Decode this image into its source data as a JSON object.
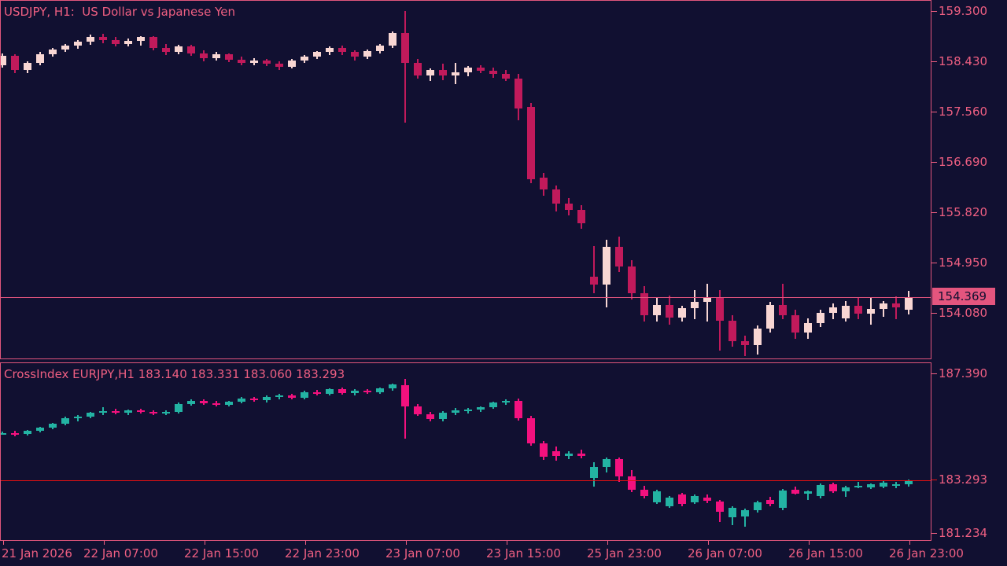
{
  "top_panel": {
    "title": "USDJPY, H1:  US Dollar vs Japanese Yen",
    "symbol": "USDJPY",
    "timeframe": "H1",
    "description": "US Dollar vs Japanese Yen",
    "price_axis": {
      "labels": [
        "159.300",
        "158.430",
        "157.560",
        "156.690",
        "155.820",
        "154.950",
        "154.080"
      ],
      "bid_badge": "154.369"
    }
  },
  "lower_panel": {
    "title": "CrossIndex EURJPY,H1 183.140 183.331 183.060 183.293",
    "indicator_name": "CrossIndex",
    "symbol": "EURJPY",
    "timeframe": "H1",
    "displayed_values": [
      "183.140",
      "183.331",
      "183.060",
      "183.293"
    ],
    "price_axis": {
      "labels": [
        "187.390",
        "183.293",
        "181.234"
      ]
    }
  },
  "time_axis": {
    "labels": [
      "21 Jan 2026",
      "22 Jan 07:00",
      "22 Jan 15:00",
      "22 Jan 23:00",
      "23 Jan 07:00",
      "23 Jan 15:00",
      "25 Jan 23:00",
      "26 Jan 07:00",
      "26 Jan 15:00",
      "26 Jan 23:00"
    ]
  },
  "colors": {
    "background": "#111031",
    "accent_text": "#ef5f82",
    "panel_border": "#e0557c",
    "bull_candle_main": "#f8d6d3",
    "bear_candle_main": "#c11a5b",
    "bull_candle_indicator": "#23b3a3",
    "bear_candle_indicator": "#f3117e",
    "bid_line": "#e4557e",
    "level_line": "#e81010",
    "badge_bg": "#e4557e",
    "badge_text": "#111031"
  },
  "chart_data": [
    {
      "type": "candlestick",
      "title": "USDJPY, H1: US Dollar vs Japanese Yen",
      "symbol": "USDJPY",
      "timeframe": "H1",
      "legend_position": "top-left",
      "grid": false,
      "ylim": [
        153.2,
        159.45
      ],
      "y_ticks": [
        159.3,
        158.43,
        157.56,
        156.69,
        155.82,
        154.95,
        154.08
      ],
      "bid_line_price": 154.369,
      "x_tick_labels": [
        "21 Jan 2026",
        "22 Jan 07:00",
        "22 Jan 15:00",
        "22 Jan 23:00",
        "23 Jan 07:00",
        "23 Jan 15:00",
        "25 Jan 23:00",
        "26 Jan 07:00",
        "26 Jan 15:00",
        "26 Jan 23:00"
      ],
      "ohlc": [
        [
          158.42,
          158.55,
          158.3,
          158.5
        ],
        [
          158.38,
          158.58,
          158.33,
          158.54
        ],
        [
          158.54,
          158.57,
          158.24,
          158.3
        ],
        [
          158.3,
          158.45,
          158.24,
          158.42
        ],
        [
          158.42,
          158.6,
          158.38,
          158.57
        ],
        [
          158.57,
          158.68,
          158.52,
          158.65
        ],
        [
          158.65,
          158.74,
          158.6,
          158.71
        ],
        [
          158.71,
          158.81,
          158.66,
          158.78
        ],
        [
          158.78,
          158.9,
          158.73,
          158.86
        ],
        [
          158.86,
          158.92,
          158.76,
          158.81
        ],
        [
          158.81,
          158.86,
          158.7,
          158.74
        ],
        [
          158.74,
          158.84,
          158.7,
          158.8
        ],
        [
          158.8,
          158.88,
          158.72,
          158.86
        ],
        [
          158.86,
          158.88,
          158.64,
          158.68
        ],
        [
          158.68,
          158.74,
          158.55,
          158.6
        ],
        [
          158.6,
          158.73,
          158.56,
          158.7
        ],
        [
          158.7,
          158.73,
          158.54,
          158.58
        ],
        [
          158.58,
          158.64,
          158.45,
          158.5
        ],
        [
          158.5,
          158.6,
          158.46,
          158.56
        ],
        [
          158.56,
          158.58,
          158.43,
          158.47
        ],
        [
          158.47,
          158.52,
          158.37,
          158.42
        ],
        [
          158.42,
          158.5,
          158.38,
          158.46
        ],
        [
          158.46,
          158.48,
          158.36,
          158.4
        ],
        [
          158.4,
          158.44,
          158.3,
          158.35
        ],
        [
          158.35,
          158.48,
          158.32,
          158.46
        ],
        [
          158.46,
          158.55,
          158.42,
          158.52
        ],
        [
          158.52,
          158.62,
          158.48,
          158.6
        ],
        [
          158.6,
          158.7,
          158.55,
          158.68
        ],
        [
          158.68,
          158.72,
          158.55,
          158.6
        ],
        [
          158.6,
          158.64,
          158.46,
          158.52
        ],
        [
          158.52,
          158.65,
          158.48,
          158.62
        ],
        [
          158.62,
          158.74,
          158.58,
          158.72
        ],
        [
          158.72,
          158.96,
          158.68,
          158.93
        ],
        [
          158.93,
          159.31,
          157.38,
          158.42
        ],
        [
          158.42,
          158.48,
          158.15,
          158.2
        ],
        [
          158.2,
          158.32,
          158.1,
          158.29
        ],
        [
          158.29,
          158.4,
          158.12,
          158.2
        ],
        [
          158.2,
          158.42,
          158.05,
          158.26
        ],
        [
          158.26,
          158.36,
          158.18,
          158.33
        ],
        [
          158.33,
          158.38,
          158.24,
          158.28
        ],
        [
          158.28,
          158.34,
          158.16,
          158.22
        ],
        [
          158.22,
          158.3,
          158.1,
          158.14
        ],
        [
          158.14,
          158.22,
          157.42,
          157.63
        ],
        [
          157.66,
          157.72,
          156.34,
          156.4
        ],
        [
          156.43,
          156.52,
          156.12,
          156.23
        ],
        [
          156.23,
          156.3,
          155.85,
          155.98
        ],
        [
          155.98,
          156.08,
          155.78,
          155.87
        ],
        [
          155.88,
          155.96,
          155.55,
          155.65
        ],
        [
          154.72,
          155.25,
          154.43,
          154.58
        ],
        [
          154.58,
          155.36,
          154.19,
          155.24
        ],
        [
          155.24,
          155.41,
          154.8,
          154.9
        ],
        [
          154.9,
          155.0,
          154.33,
          154.43
        ],
        [
          154.43,
          154.55,
          153.95,
          154.05
        ],
        [
          154.05,
          154.35,
          153.94,
          154.23
        ],
        [
          154.23,
          154.39,
          153.89,
          154.01
        ],
        [
          154.01,
          154.22,
          153.95,
          154.18
        ],
        [
          154.18,
          154.49,
          153.98,
          154.29
        ],
        [
          154.29,
          154.6,
          153.94,
          154.35
        ],
        [
          154.35,
          154.49,
          153.44,
          153.96
        ],
        [
          153.96,
          154.05,
          153.51,
          153.6
        ],
        [
          153.6,
          153.7,
          153.35,
          153.54
        ],
        [
          153.54,
          153.88,
          153.37,
          153.82
        ],
        [
          153.82,
          154.28,
          153.75,
          154.23
        ],
        [
          154.23,
          154.6,
          153.98,
          154.05
        ],
        [
          154.05,
          154.15,
          153.64,
          153.75
        ],
        [
          153.75,
          154.0,
          153.65,
          153.92
        ],
        [
          153.92,
          154.15,
          153.85,
          154.1
        ],
        [
          154.1,
          154.25,
          153.99,
          154.19
        ],
        [
          154.0,
          154.3,
          153.95,
          154.22
        ],
        [
          154.22,
          154.35,
          153.98,
          154.08
        ],
        [
          154.08,
          154.35,
          153.89,
          154.16
        ],
        [
          154.16,
          154.3,
          154.02,
          154.26
        ],
        [
          154.26,
          154.38,
          153.99,
          154.19
        ],
        [
          154.15,
          154.48,
          154.06,
          154.369
        ]
      ]
    },
    {
      "type": "candlestick",
      "title": "CrossIndex EURJPY,H1",
      "indicator": "CrossIndex",
      "symbol": "EURJPY",
      "timeframe": "H1",
      "last_values": [
        183.14,
        183.331,
        183.06,
        183.293
      ],
      "grid": false,
      "ylim": [
        181.2,
        187.45
      ],
      "y_ticks": [
        187.39,
        183.293,
        181.234
      ],
      "level_line_price": 183.293,
      "ohlc": [
        [
          185.06,
          185.14,
          185.0,
          185.1
        ],
        [
          185.1,
          185.16,
          185.04,
          185.12
        ],
        [
          185.12,
          185.2,
          184.98,
          185.08
        ],
        [
          185.08,
          185.22,
          185.02,
          185.2
        ],
        [
          185.2,
          185.36,
          185.14,
          185.32
        ],
        [
          185.32,
          185.52,
          185.26,
          185.48
        ],
        [
          185.48,
          185.75,
          185.42,
          185.7
        ],
        [
          185.7,
          185.82,
          185.58,
          185.74
        ],
        [
          185.74,
          185.94,
          185.68,
          185.9
        ],
        [
          185.9,
          186.1,
          185.82,
          185.96
        ],
        [
          185.96,
          186.06,
          185.84,
          185.9
        ],
        [
          185.9,
          186.02,
          185.82,
          185.98
        ],
        [
          185.98,
          186.06,
          185.86,
          185.92
        ],
        [
          185.92,
          186.0,
          185.82,
          185.88
        ],
        [
          185.88,
          186.0,
          185.82,
          185.94
        ],
        [
          185.94,
          186.28,
          185.88,
          186.24
        ],
        [
          186.24,
          186.4,
          186.16,
          186.34
        ],
        [
          186.34,
          186.42,
          186.2,
          186.26
        ],
        [
          186.26,
          186.36,
          186.14,
          186.2
        ],
        [
          186.2,
          186.36,
          186.14,
          186.32
        ],
        [
          186.32,
          186.5,
          186.26,
          186.44
        ],
        [
          186.44,
          186.52,
          186.32,
          186.38
        ],
        [
          186.38,
          186.56,
          186.3,
          186.52
        ],
        [
          186.52,
          186.62,
          186.42,
          186.56
        ],
        [
          186.56,
          186.64,
          186.42,
          186.48
        ],
        [
          186.48,
          186.74,
          186.42,
          186.7
        ],
        [
          186.7,
          186.78,
          186.58,
          186.64
        ],
        [
          186.64,
          186.84,
          186.58,
          186.8
        ],
        [
          186.8,
          186.86,
          186.6,
          186.66
        ],
        [
          186.66,
          186.8,
          186.58,
          186.74
        ],
        [
          186.74,
          186.8,
          186.62,
          186.68
        ],
        [
          186.68,
          186.88,
          186.62,
          186.84
        ],
        [
          186.84,
          187.02,
          186.76,
          186.98
        ],
        [
          186.95,
          187.19,
          184.91,
          186.14
        ],
        [
          186.14,
          186.24,
          185.78,
          185.84
        ],
        [
          185.84,
          185.94,
          185.58,
          185.66
        ],
        [
          185.66,
          185.95,
          185.58,
          185.9
        ],
        [
          185.9,
          186.08,
          185.8,
          186.0
        ],
        [
          185.95,
          186.08,
          185.86,
          186.02
        ],
        [
          186.02,
          186.14,
          185.94,
          186.1
        ],
        [
          186.1,
          186.32,
          186.04,
          186.28
        ],
        [
          186.28,
          186.42,
          186.2,
          186.36
        ],
        [
          186.36,
          186.44,
          185.6,
          185.69
        ],
        [
          185.69,
          185.78,
          184.62,
          184.73
        ],
        [
          184.73,
          184.82,
          184.08,
          184.19
        ],
        [
          184.42,
          184.6,
          184.05,
          184.22
        ],
        [
          184.22,
          184.4,
          184.1,
          184.32
        ],
        [
          184.32,
          184.48,
          184.15,
          184.24
        ],
        [
          183.38,
          184.0,
          183.05,
          183.8
        ],
        [
          183.8,
          184.16,
          183.6,
          184.1
        ],
        [
          184.1,
          184.18,
          183.23,
          183.44
        ],
        [
          183.44,
          183.68,
          182.85,
          182.93
        ],
        [
          182.93,
          183.08,
          182.6,
          182.69
        ],
        [
          182.45,
          182.93,
          182.38,
          182.87
        ],
        [
          182.3,
          182.7,
          182.22,
          182.63
        ],
        [
          182.75,
          182.8,
          182.3,
          182.39
        ],
        [
          182.45,
          182.75,
          182.38,
          182.69
        ],
        [
          182.63,
          182.75,
          182.42,
          182.51
        ],
        [
          182.48,
          182.55,
          181.7,
          182.09
        ],
        [
          181.88,
          182.3,
          181.58,
          182.24
        ],
        [
          181.91,
          182.2,
          181.49,
          182.15
        ],
        [
          182.15,
          182.52,
          182.05,
          182.45
        ],
        [
          182.54,
          182.66,
          182.3,
          182.39
        ],
        [
          182.24,
          182.96,
          182.15,
          182.9
        ],
        [
          182.93,
          183.05,
          182.75,
          182.78
        ],
        [
          182.78,
          182.9,
          182.54,
          182.87
        ],
        [
          182.69,
          183.17,
          182.6,
          183.11
        ],
        [
          183.14,
          183.2,
          182.8,
          182.87
        ],
        [
          182.87,
          183.08,
          182.66,
          183.02
        ],
        [
          183.05,
          183.23,
          182.99,
          183.08
        ],
        [
          183.02,
          183.17,
          182.96,
          183.14
        ],
        [
          183.05,
          183.26,
          182.99,
          183.2
        ],
        [
          183.12,
          183.24,
          183.0,
          183.14
        ],
        [
          183.14,
          183.331,
          183.06,
          183.293
        ]
      ]
    }
  ]
}
